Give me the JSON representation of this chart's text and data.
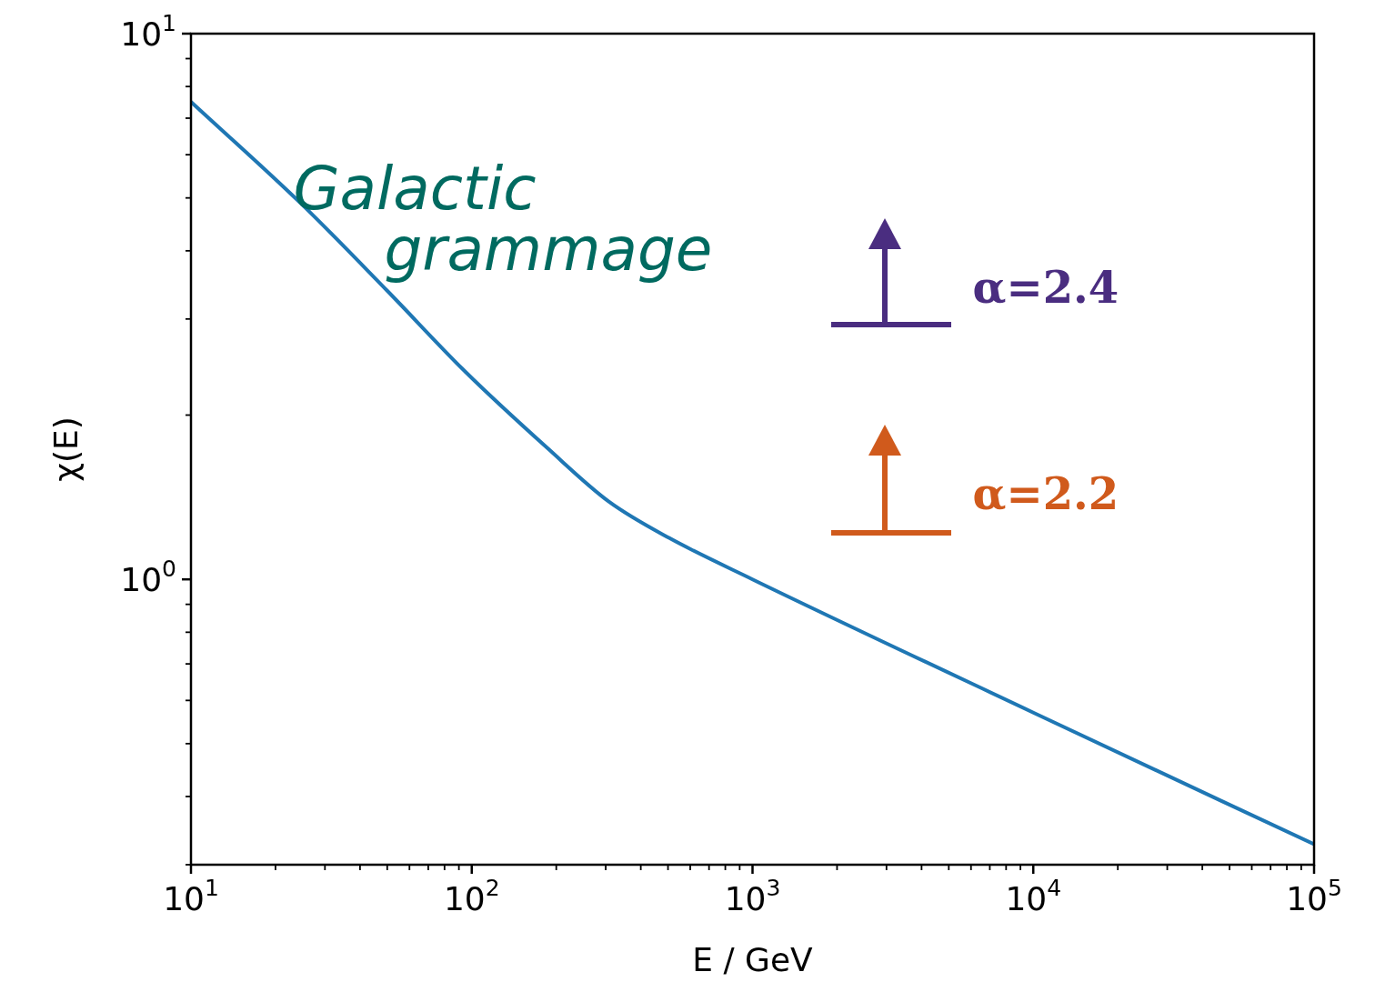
{
  "chart_data": {
    "type": "line",
    "xlabel": "E / GeV",
    "ylabel": "χ(E)",
    "log": "xy",
    "grid": false,
    "legend": false,
    "marker": "none",
    "line_style": "solid",
    "x": [
      10,
      25,
      50,
      95,
      186,
      307,
      506,
      1000,
      10000,
      100000
    ],
    "series": [
      {
        "color": "#1f77b4",
        "values": [
          7.5,
          4.85,
          3.38,
          2.4,
          1.74,
          1.39,
          1.19,
          1.0,
          0.57,
          0.327
        ]
      }
    ],
    "xlim": [
      10,
      100000
    ],
    "xticks": [
      {
        "value": 10,
        "label": "10$^{1}$"
      },
      {
        "value": 20,
        "label": null
      },
      {
        "value": 30,
        "label": null
      },
      {
        "value": 40,
        "label": null
      },
      {
        "value": 50,
        "label": null
      },
      {
        "value": 60,
        "label": null
      },
      {
        "value": 70,
        "label": null
      },
      {
        "value": 80,
        "label": null
      },
      {
        "value": 90,
        "label": null
      },
      {
        "value": 100,
        "label": "10$^{2}$"
      },
      {
        "value": 200,
        "label": null
      },
      {
        "value": 300,
        "label": null
      },
      {
        "value": 400,
        "label": null
      },
      {
        "value": 500,
        "label": null
      },
      {
        "value": 600,
        "label": null
      },
      {
        "value": 700,
        "label": null
      },
      {
        "value": 800,
        "label": null
      },
      {
        "value": 900,
        "label": null
      },
      {
        "value": 1000,
        "label": "10$^{3}$"
      },
      {
        "value": 2000,
        "label": null
      },
      {
        "value": 3000,
        "label": null
      },
      {
        "value": 4000,
        "label": null
      },
      {
        "value": 5000,
        "label": null
      },
      {
        "value": 6000,
        "label": null
      },
      {
        "value": 7000,
        "label": null
      },
      {
        "value": 8000,
        "label": null
      },
      {
        "value": 9000,
        "label": null
      },
      {
        "value": 10000,
        "label": "10$^{4}$"
      },
      {
        "value": 20000,
        "label": null
      },
      {
        "value": 30000,
        "label": null
      },
      {
        "value": 40000,
        "label": null
      },
      {
        "value": 50000,
        "label": null
      },
      {
        "value": 60000,
        "label": null
      },
      {
        "value": 70000,
        "label": null
      },
      {
        "value": 80000,
        "label": null
      },
      {
        "value": 90000,
        "label": null
      },
      {
        "value": 100000,
        "label": "10$^{5}$"
      }
    ],
    "ylim": [
      0.3,
      10
    ],
    "yticks": [
      {
        "value": 0.3,
        "label": null
      },
      {
        "value": 0.4,
        "label": null
      },
      {
        "value": 0.5,
        "label": null
      },
      {
        "value": 0.6,
        "label": null
      },
      {
        "value": 0.7,
        "label": null
      },
      {
        "value": 0.8,
        "label": null
      },
      {
        "value": 0.9,
        "label": null
      },
      {
        "value": 1,
        "label": "10$^{0}$"
      },
      {
        "value": 2,
        "label": null
      },
      {
        "value": 3,
        "label": null
      },
      {
        "value": 4,
        "label": null
      },
      {
        "value": 5,
        "label": null
      },
      {
        "value": 6,
        "label": null
      },
      {
        "value": 7,
        "label": null
      },
      {
        "value": 8,
        "label": null
      },
      {
        "value": 9,
        "label": null
      },
      {
        "value": 10,
        "label": "10$^{1}$"
      }
    ],
    "annotations": [
      "Galactic grammage",
      "α=2.4",
      "α=2.2"
    ]
  }
}
